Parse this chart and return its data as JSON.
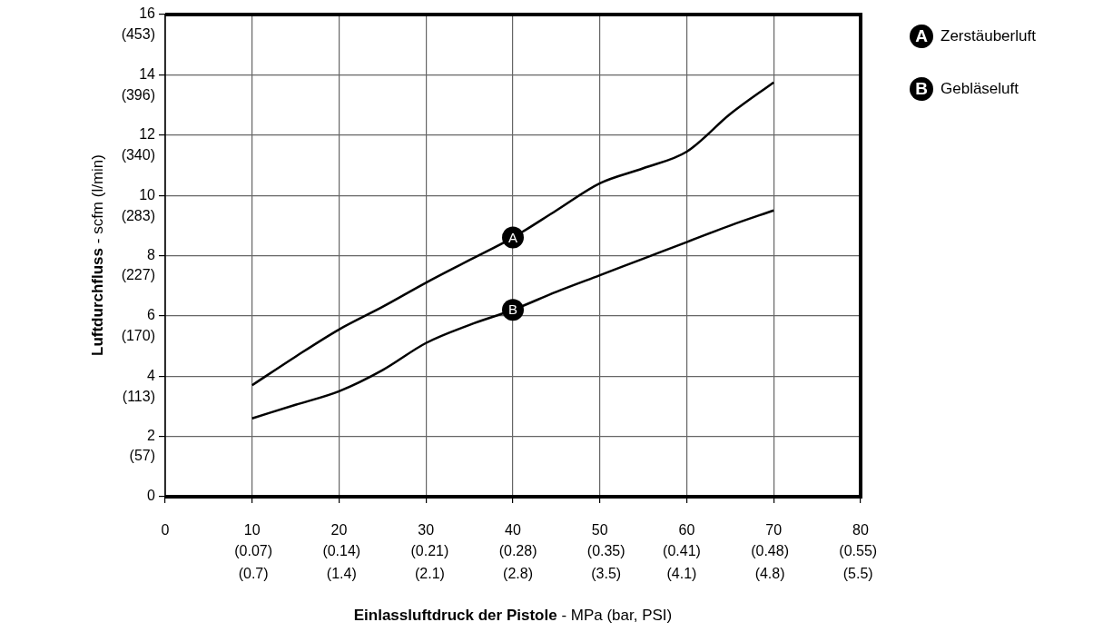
{
  "chart_data": {
    "type": "line",
    "xlabel": "Einlassluftdruck der Pistole - MPa (bar, PSI)",
    "y2label": "Luftdurchfluss - scfm (l/min)",
    "x": [
      10,
      15,
      20,
      25,
      30,
      35,
      40,
      45,
      50,
      55,
      60,
      65,
      70
    ],
    "series": [
      {
        "name": "Zerstäuberluft",
        "color": "#000000",
        "values": [
          3.7,
          4.65,
          5.55,
          6.3,
          7.1,
          7.85,
          8.6,
          9.5,
          10.4,
          10.9,
          11.45,
          12.7,
          13.75
        ]
      },
      {
        "name": "Gebläseluft",
        "color": "#000000",
        "values": [
          2.6,
          3.05,
          3.5,
          4.2,
          5.1,
          5.7,
          6.2,
          6.8,
          7.35,
          7.9,
          8.45,
          9.0,
          9.5
        ]
      }
    ],
    "annotations": [
      {
        "text": "A",
        "x": 40,
        "y": 8.6
      },
      {
        "text": "B",
        "x": 40,
        "y": 6.2
      },
      "(0.7)",
      "(1.4)",
      "(2.1)",
      "(2.8)",
      "(3.5)",
      "(4.1)",
      "(4.8)",
      "(5.5)"
    ],
    "xlim": [
      0,
      80
    ],
    "xticks": [
      0,
      10,
      20,
      30,
      40,
      50,
      60,
      70,
      80
    ],
    "x2lim": [
      0,
      0.552
    ],
    "x2ticks": [
      {
        "value": 0.07,
        "label": "(0.07)"
      },
      {
        "value": 0.14,
        "label": "(0.14)"
      },
      {
        "value": 0.21,
        "label": "(0.21)"
      },
      {
        "value": 0.28,
        "label": "(0.28)"
      },
      {
        "value": 0.35,
        "label": "(0.35)"
      },
      {
        "value": 0.41,
        "label": "(0.41)"
      },
      {
        "value": 0.48,
        "label": "(0.48)"
      },
      {
        "value": 0.55,
        "label": "(0.55)"
      }
    ],
    "ylim": [
      0,
      16
    ],
    "yticks": [
      0,
      2,
      4,
      6,
      8,
      10,
      12,
      14,
      16
    ],
    "y2lim": [
      19.5,
      472.5
    ],
    "y2ticks": [
      {
        "value": 57,
        "label": "(57)"
      },
      {
        "value": 113,
        "label": "(113)"
      },
      {
        "value": 170,
        "label": "(170)"
      },
      {
        "value": 227,
        "label": "(227)"
      },
      {
        "value": 283,
        "label": "(283)"
      },
      {
        "value": 340,
        "label": "(340)"
      },
      {
        "value": 396,
        "label": "(396)"
      },
      {
        "value": 453,
        "label": "(453)"
      }
    ],
    "grid": true,
    "legend": "top right",
    "marker": "none",
    "line_style": "solid"
  }
}
